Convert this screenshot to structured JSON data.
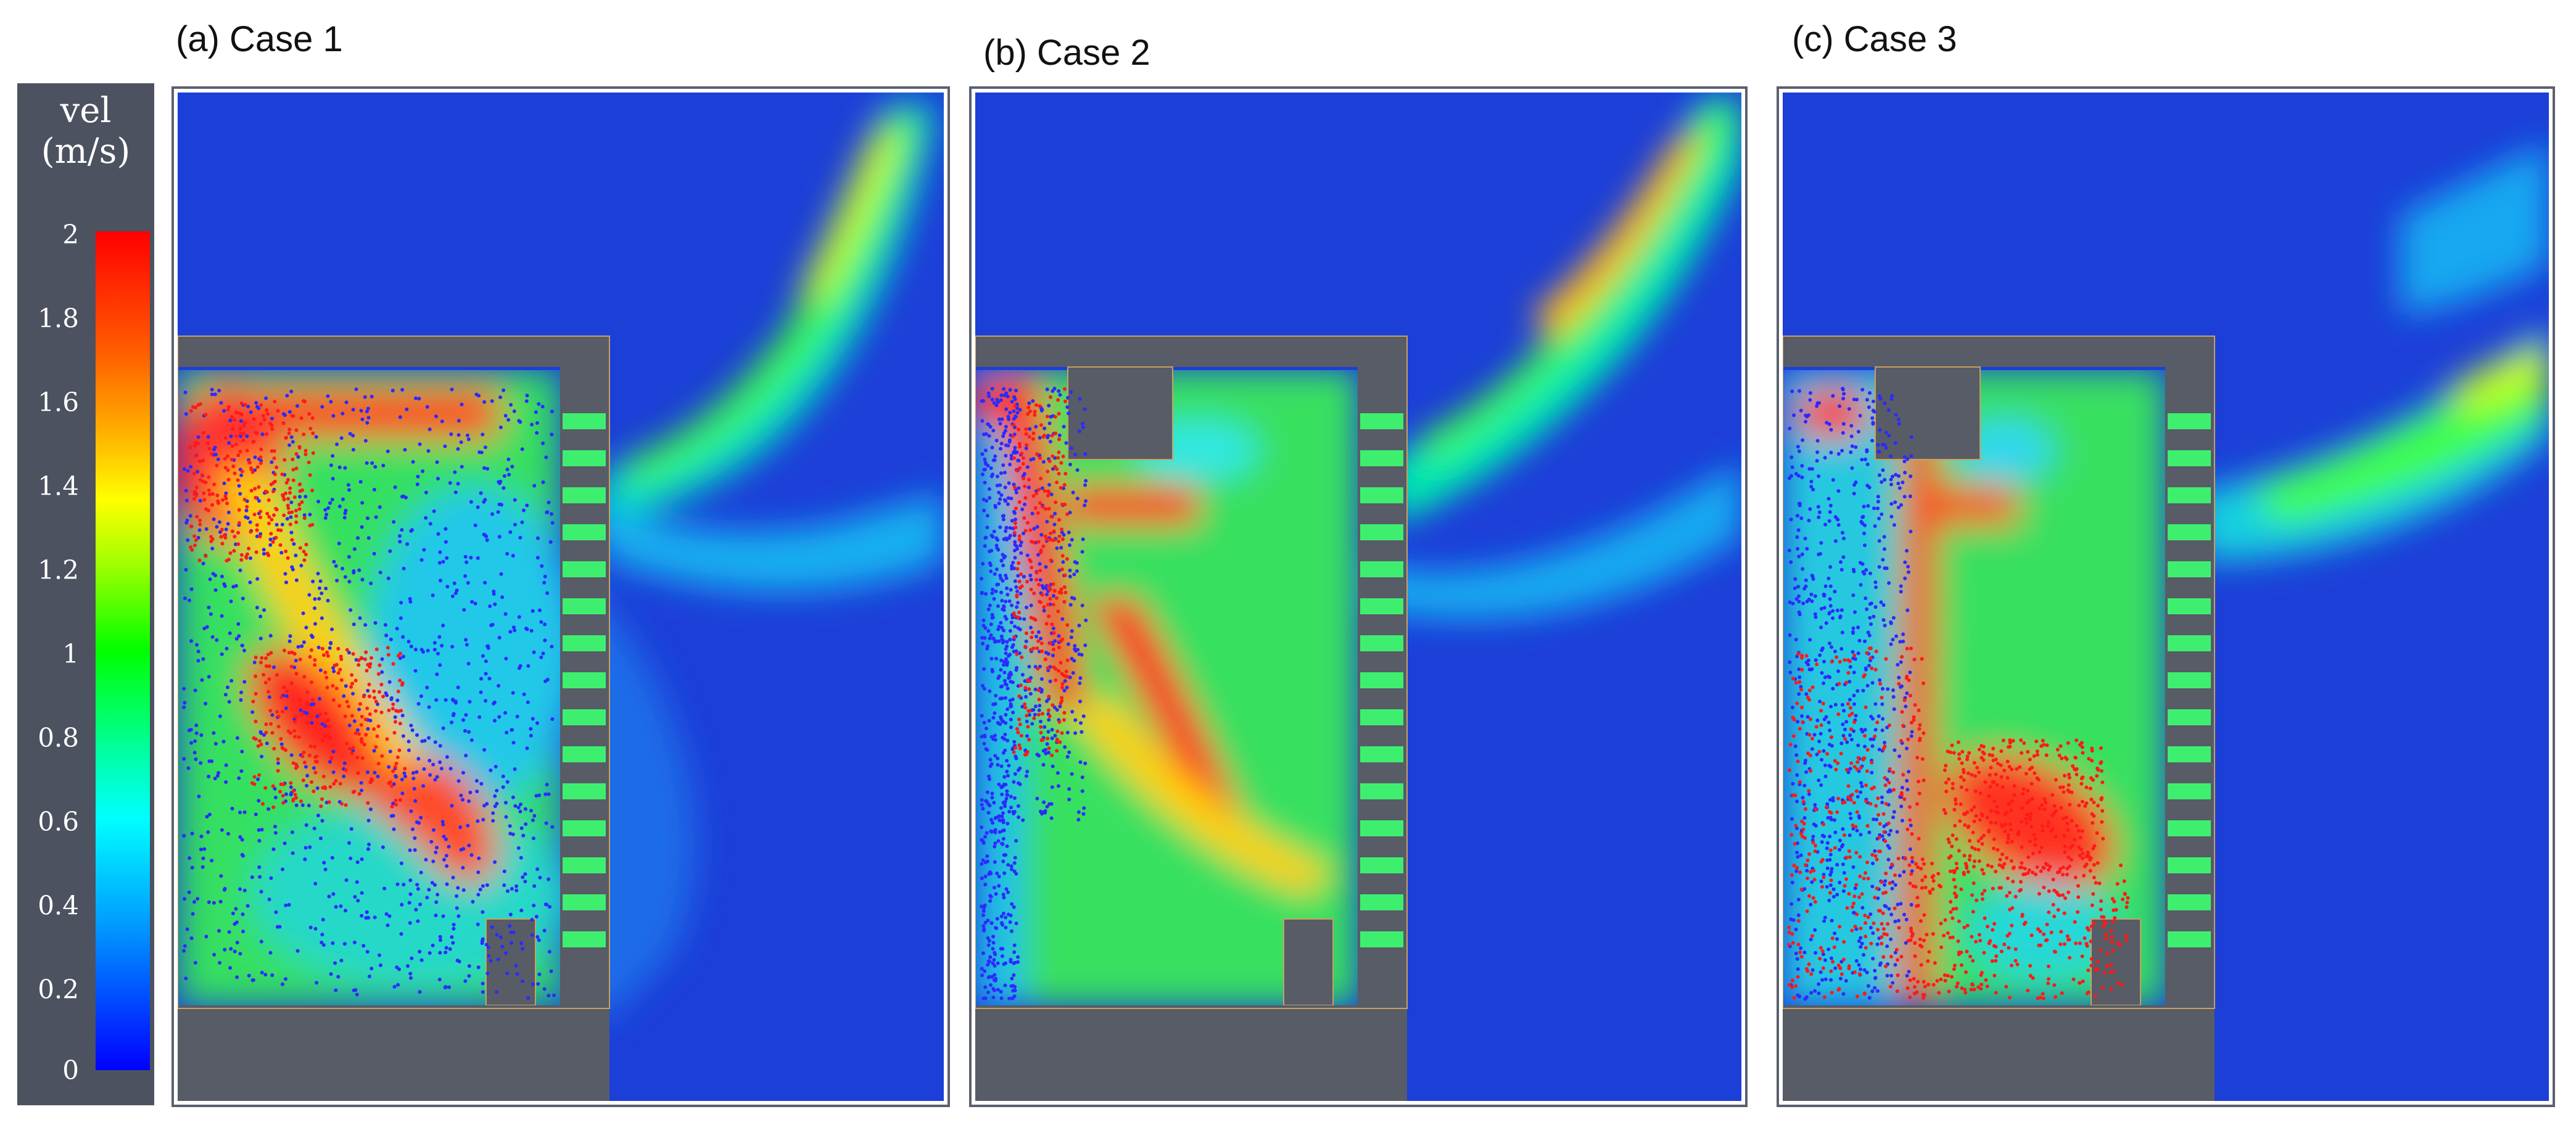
{
  "panels": [
    {
      "label": "(a) Case 1"
    },
    {
      "label": "(b) Case 2"
    },
    {
      "label": "(c) Case 3"
    }
  ],
  "colorbar": {
    "title_line1": "vel",
    "title_line2": "(m/s)",
    "ticks": [
      "2",
      "1.8",
      "1.6",
      "1.4",
      "1.2",
      "1",
      "0.8",
      "0.6",
      "0.4",
      "0.2",
      "0"
    ],
    "min": 0,
    "max": 2,
    "colors": [
      "#0000ff",
      "#00bfff",
      "#00ffff",
      "#00ff00",
      "#ffff00",
      "#ff8000",
      "#ff0000"
    ]
  },
  "colors": {
    "background_flow": "#1c3fd8",
    "wall": "#575c66",
    "particle_blue": "#2b2bff",
    "particle_red": "#ff1a1a"
  }
}
